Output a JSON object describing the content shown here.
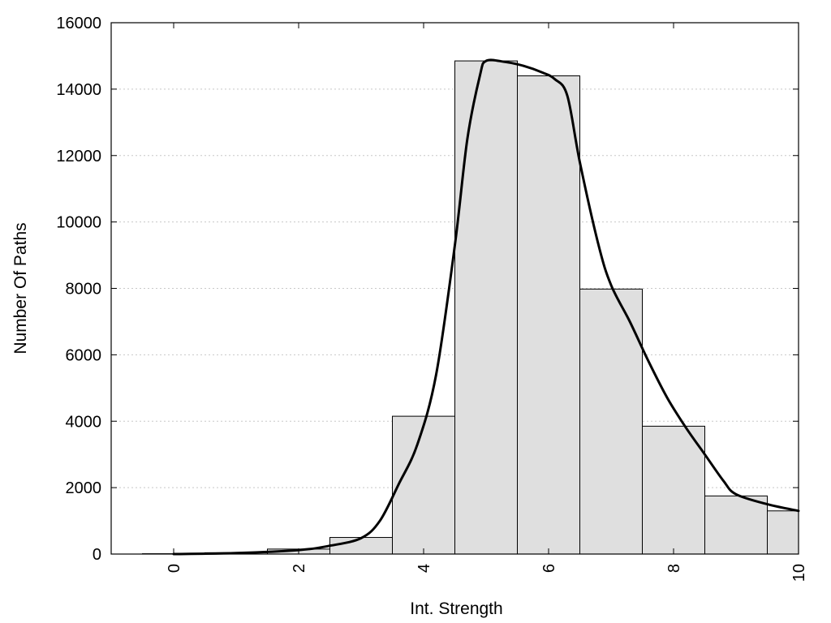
{
  "chart_data": {
    "type": "bar",
    "title": "",
    "xlabel": "Int. Strength",
    "ylabel": "Number Of Paths",
    "xlim": [
      -1,
      10
    ],
    "ylim": [
      0,
      16000
    ],
    "x_ticks": [
      0,
      2,
      4,
      6,
      8,
      10
    ],
    "y_ticks": [
      0,
      2000,
      4000,
      6000,
      8000,
      10000,
      12000,
      14000,
      16000
    ],
    "grid": "horizontal-dotted",
    "bar_width": 1,
    "x": [
      0,
      1,
      2,
      3,
      4,
      5,
      6,
      7,
      8,
      9,
      10
    ],
    "values": [
      10,
      40,
      150,
      500,
      4150,
      14850,
      14400,
      7980,
      3850,
      1750,
      1300
    ],
    "curve": {
      "x": [
        0,
        1,
        2,
        2.5,
        3,
        3.3,
        3.6,
        3.9,
        4.2,
        4.5,
        4.7,
        4.9,
        5.0,
        5.3,
        5.6,
        5.9,
        6.1,
        6.3,
        6.5,
        6.8,
        7.0,
        7.3,
        7.6,
        7.9,
        8.2,
        8.5,
        8.8,
        9.0,
        9.5,
        10
      ],
      "y": [
        0,
        30,
        120,
        250,
        480,
        1000,
        2100,
        3300,
        5400,
        9300,
        12500,
        14400,
        14850,
        14820,
        14700,
        14500,
        14300,
        13800,
        11800,
        9300,
        8100,
        7000,
        5800,
        4700,
        3800,
        3000,
        2200,
        1800,
        1500,
        1300
      ]
    }
  }
}
